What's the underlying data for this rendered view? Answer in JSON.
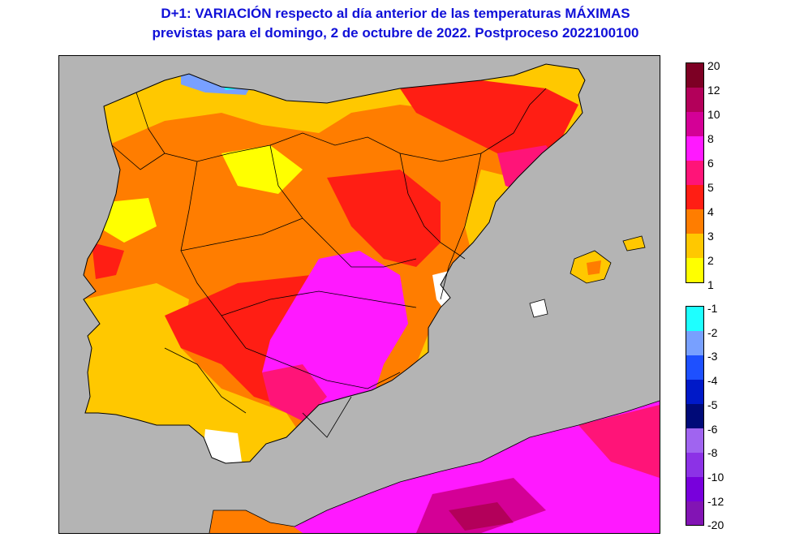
{
  "title": {
    "line1": "D+1:  VARIACIÓN respecto al día anterior de las temperaturas MÁXIMAS",
    "line2": "previstas para el domingo, 2 de octubre de 2022. Postproceso 2022100100"
  },
  "legend": {
    "positive": [
      {
        "label": "20",
        "color": "#7d0024"
      },
      {
        "label": "12",
        "color": "#b3005a"
      },
      {
        "label": "10",
        "color": "#d40096"
      },
      {
        "label": "8",
        "color": "#ff19ff"
      },
      {
        "label": "6",
        "color": "#ff1478"
      },
      {
        "label": "5",
        "color": "#ff1e14"
      },
      {
        "label": "4",
        "color": "#ff7d00"
      },
      {
        "label": "3",
        "color": "#ffc800"
      },
      {
        "label": "2",
        "color": "#ffff00"
      },
      {
        "label": "1",
        "color": ""
      }
    ],
    "negative": [
      {
        "label": "-1",
        "color": "#1effff"
      },
      {
        "label": "-2",
        "color": "#78a0ff"
      },
      {
        "label": "-3",
        "color": "#1e50ff"
      },
      {
        "label": "-4",
        "color": "#0019c8"
      },
      {
        "label": "-5",
        "color": "#000a78"
      },
      {
        "label": "-6",
        "color": "#a064f0"
      },
      {
        "label": "-8",
        "color": "#8c32e6"
      },
      {
        "label": "-10",
        "color": "#7800dc"
      },
      {
        "label": "-12",
        "color": "#8214b4"
      },
      {
        "label": "-20",
        "color": ""
      }
    ]
  },
  "colors": {
    "title": "#1010d8",
    "sea": "#b4b4b4",
    "neutral_land": "#ffffff"
  }
}
